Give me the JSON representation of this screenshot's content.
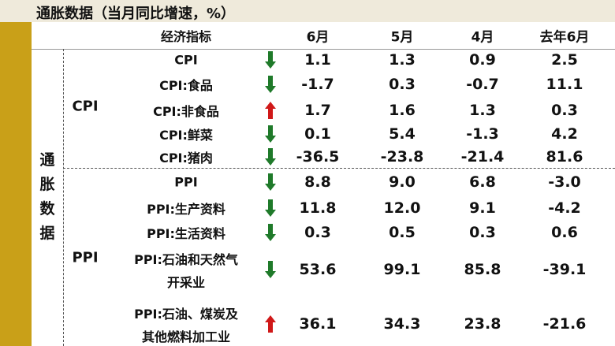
{
  "header": {
    "title": "通胀数据（当月同比增速，%）"
  },
  "table": {
    "side_label": "通胀数据",
    "columns": [
      "经济指标",
      "6月",
      "5月",
      "4月",
      "去年6月"
    ],
    "groups": [
      {
        "label": "CPI",
        "rows": [
          {
            "indicator": [
              "CPI"
            ],
            "trend": "down",
            "values": [
              "1.1",
              "1.3",
              "0.9",
              "2.5"
            ]
          },
          {
            "indicator": [
              "CPI:食品"
            ],
            "trend": "down",
            "values": [
              "-1.7",
              "0.3",
              "-0.7",
              "11.1"
            ]
          },
          {
            "indicator": [
              "CPI:非食品"
            ],
            "trend": "up",
            "values": [
              "1.7",
              "1.6",
              "1.3",
              "0.3"
            ]
          },
          {
            "indicator": [
              "CPI:鲜菜"
            ],
            "trend": "down",
            "values": [
              "0.1",
              "5.4",
              "-1.3",
              "4.2"
            ]
          },
          {
            "indicator": [
              "CPI:猪肉"
            ],
            "trend": "down",
            "values": [
              "-36.5",
              "-23.8",
              "-21.4",
              "81.6"
            ]
          }
        ]
      },
      {
        "label": "PPI",
        "rows": [
          {
            "indicator": [
              "PPI"
            ],
            "trend": "down",
            "values": [
              "8.8",
              "9.0",
              "6.8",
              "-3.0"
            ]
          },
          {
            "indicator": [
              "PPI:生产资料"
            ],
            "trend": "down",
            "values": [
              "11.8",
              "12.0",
              "9.1",
              "-4.2"
            ]
          },
          {
            "indicator": [
              "PPI:生活资料"
            ],
            "trend": "down",
            "values": [
              "0.3",
              "0.5",
              "0.3",
              "0.6"
            ]
          },
          {
            "indicator": [
              "PPI:石油和天然气",
              "开采业"
            ],
            "trend": "down",
            "values": [
              "53.6",
              "99.1",
              "85.8",
              "-39.1"
            ]
          },
          {
            "indicator": [
              "PPI:石油、煤炭及",
              "其他燃料加工业"
            ],
            "trend": "up",
            "values": [
              "36.1",
              "34.3",
              "23.8",
              "-21.6"
            ]
          }
        ]
      }
    ]
  }
}
